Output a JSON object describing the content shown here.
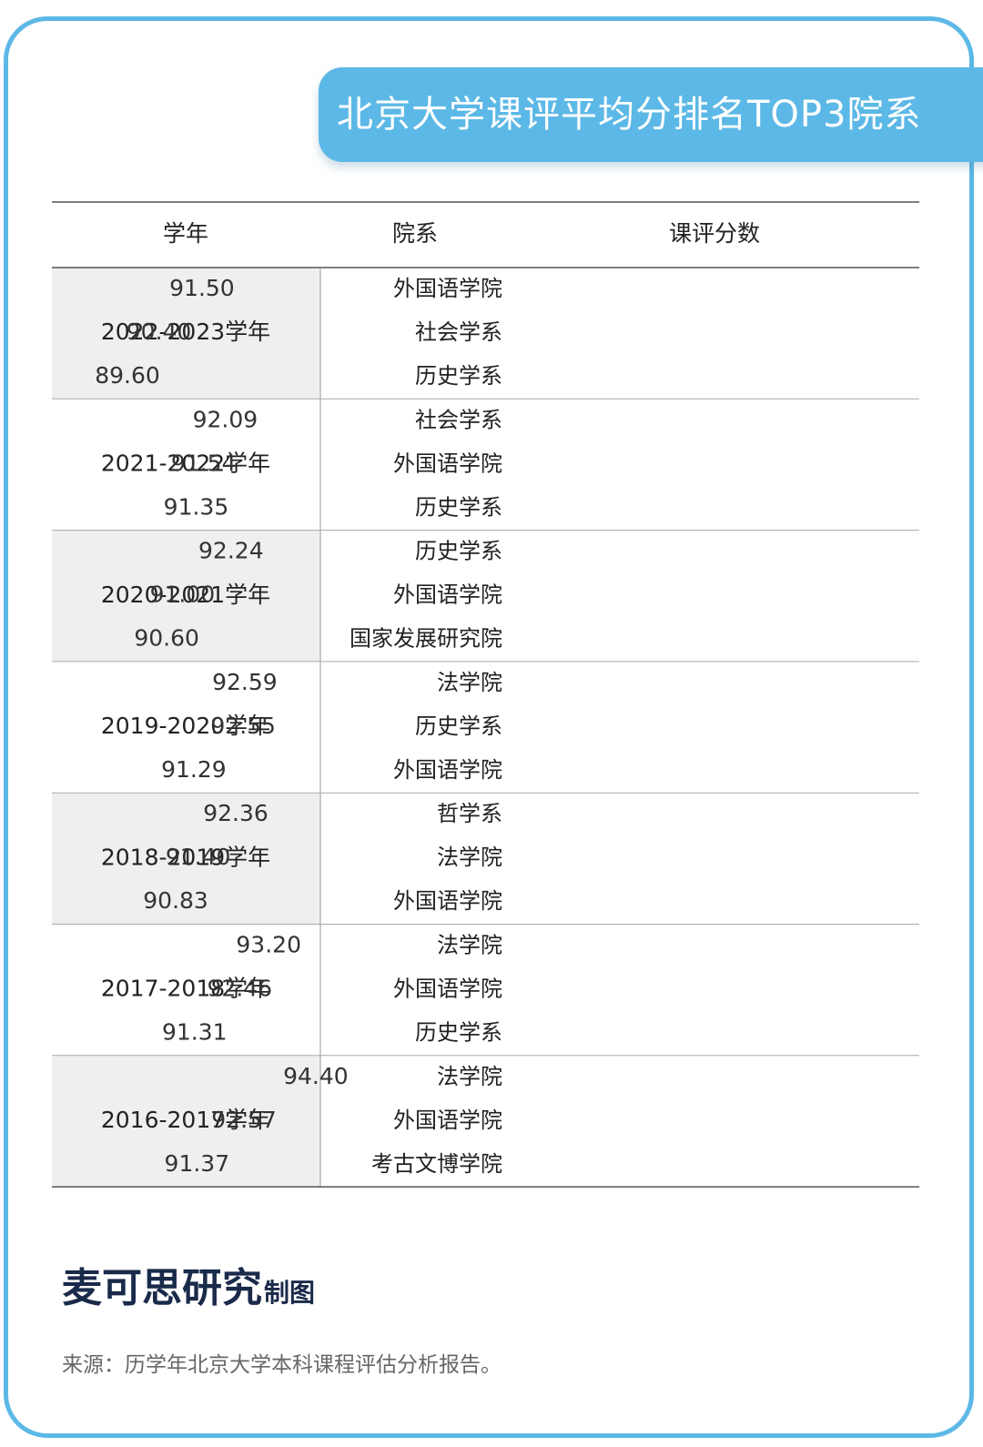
{
  "page": {
    "title": "北京大学课评平均分排名TOP3院系",
    "brand_name": "麦可思研究",
    "brand_suffix": "制图",
    "source": "来源：历学年北京大学本科课程评估分析报告。"
  },
  "table": {
    "headers": [
      "学年",
      "院系",
      "课评分数"
    ]
  },
  "colors": {
    "rank1": "#12b0f0",
    "rank2": "#8dc63f",
    "rank3": "#b896c8",
    "shaded_row": "#efefef",
    "frame": "#5cb8e6"
  },
  "chart_data": {
    "type": "bar",
    "orientation": "horizontal",
    "value_axis": "课评分数",
    "groups": [
      {
        "year": "2022-2023学年",
        "items": [
          {
            "department": "外国语学院",
            "score": 91.5
          },
          {
            "department": "社会学系",
            "score": 90.4
          },
          {
            "department": "历史学系",
            "score": 89.6
          }
        ]
      },
      {
        "year": "2021-2022学年",
        "items": [
          {
            "department": "社会学系",
            "score": 92.09
          },
          {
            "department": "外国语学院",
            "score": 91.54
          },
          {
            "department": "历史学系",
            "score": 91.35
          }
        ]
      },
      {
        "year": "2020-2021学年",
        "items": [
          {
            "department": "历史学系",
            "score": 92.24
          },
          {
            "department": "外国语学院",
            "score": 91.0
          },
          {
            "department": "国家发展研究院",
            "score": 90.6
          }
        ]
      },
      {
        "year": "2019-2020学年",
        "items": [
          {
            "department": "法学院",
            "score": 92.59
          },
          {
            "department": "历史学系",
            "score": 92.55
          },
          {
            "department": "外国语学院",
            "score": 91.29
          }
        ]
      },
      {
        "year": "2018-2019学年",
        "items": [
          {
            "department": "哲学系",
            "score": 92.36
          },
          {
            "department": "法学院",
            "score": 91.4
          },
          {
            "department": "外国语学院",
            "score": 90.83
          }
        ]
      },
      {
        "year": "2017-2018学年",
        "items": [
          {
            "department": "法学院",
            "score": 93.2
          },
          {
            "department": "外国语学院",
            "score": 92.46
          },
          {
            "department": "历史学系",
            "score": 91.31
          }
        ]
      },
      {
        "year": "2016-2017学年",
        "items": [
          {
            "department": "法学院",
            "score": 94.4
          },
          {
            "department": "外国语学院",
            "score": 92.57
          },
          {
            "department": "考古文博学院",
            "score": 91.37
          }
        ]
      }
    ]
  }
}
